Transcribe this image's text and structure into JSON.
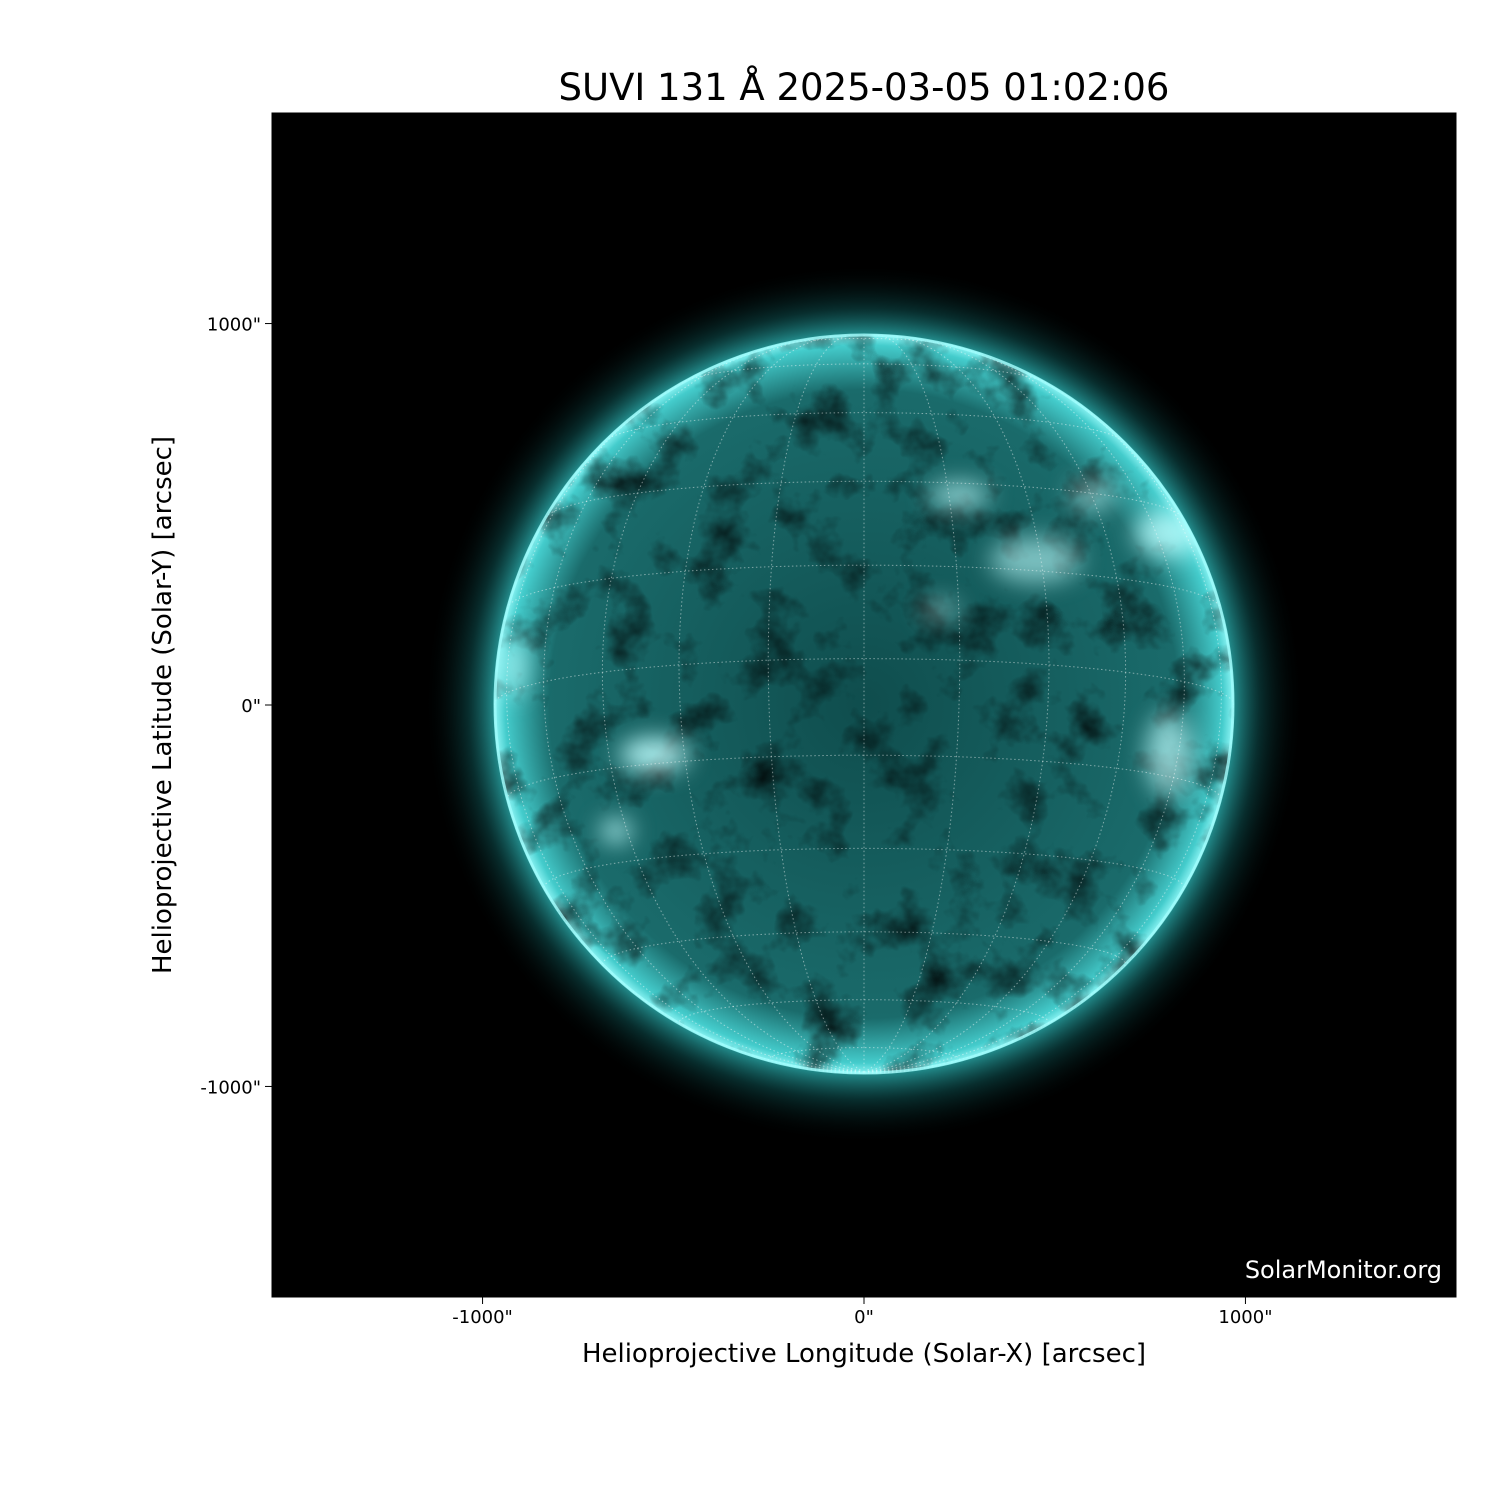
{
  "title": "SUVI 131 Å 2025-03-05 01:02:06",
  "watermark": "SolarMonitor.org",
  "chart_data": {
    "type": "heatmap",
    "title": "SUVI 131 Å 2025-03-05 01:02:06",
    "xlabel": "Helioprojective Longitude (Solar-X) [arcsec]",
    "ylabel": "Helioprojective Latitude (Solar-Y) [arcsec]",
    "xlim": [
      -1552,
      1552
    ],
    "ylim": [
      -1552,
      1552
    ],
    "xticks": [
      -1000,
      0,
      1000
    ],
    "yticks": [
      1000,
      0,
      -1000
    ],
    "xtick_labels": [
      "-1000\"",
      "0\"",
      "1000\""
    ],
    "ytick_labels": [
      "1000\"",
      "0\"",
      "-1000\""
    ],
    "solar_radius_arcsec": 970,
    "grid": "heliographic, 15° spacing, dotted",
    "colormap": "cyan on black",
    "colors": {
      "background": "#000000",
      "disk": "#2aa5a5",
      "bright": "#bfffff"
    }
  }
}
